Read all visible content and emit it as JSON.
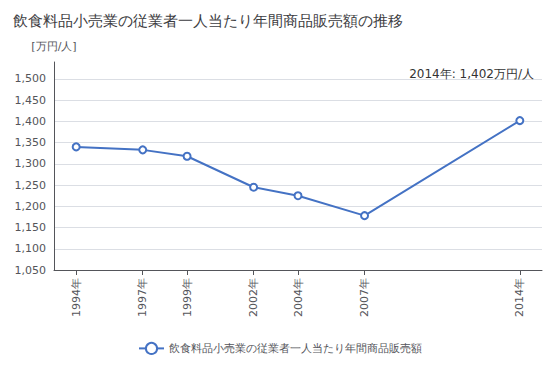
{
  "chart_data": {
    "type": "line",
    "title": "飲食料品小売業の従業者一人当たり年間商品販売額の推移",
    "ylabel": "[万円/人]",
    "annotation": "2014年: 1,402万円/人",
    "x": [
      1994,
      1997,
      1999,
      2002,
      2004,
      2007,
      2014
    ],
    "series": [
      {
        "name": "飲食料品小売業の従業者一人当たり年間商品販売額",
        "color": "#4472C4",
        "marker": "circle",
        "values": [
          1340,
          1333,
          1318,
          1245,
          1225,
          1178,
          1402
        ]
      }
    ],
    "xlim": [
      1993,
      2015
    ],
    "xticks": [
      {
        "value": 1994,
        "label": "1994年"
      },
      {
        "value": 1997,
        "label": "1997年"
      },
      {
        "value": 1999,
        "label": "1999年"
      },
      {
        "value": 2002,
        "label": "2002年"
      },
      {
        "value": 2004,
        "label": "2004年"
      },
      {
        "value": 2007,
        "label": "2007年"
      },
      {
        "value": 2014,
        "label": "2014年"
      }
    ],
    "ylim": [
      1050,
      1540
    ],
    "yticks": [
      {
        "value": 1050,
        "label": "1,050"
      },
      {
        "value": 1100,
        "label": "1,100"
      },
      {
        "value": 1150,
        "label": "1,150"
      },
      {
        "value": 1200,
        "label": "1,200"
      },
      {
        "value": 1250,
        "label": "1,250"
      },
      {
        "value": 1300,
        "label": "1,300"
      },
      {
        "value": 1350,
        "label": "1,350"
      },
      {
        "value": 1400,
        "label": "1,400"
      },
      {
        "value": 1450,
        "label": "1,450"
      },
      {
        "value": 1500,
        "label": "1,500"
      }
    ],
    "grid": true,
    "legend": "bottom"
  }
}
